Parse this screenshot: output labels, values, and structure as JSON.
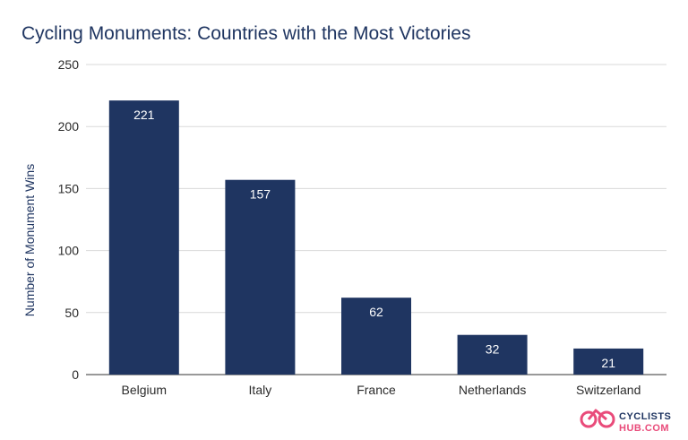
{
  "chart_data": {
    "type": "bar",
    "title": "Cycling Monuments: Countries with the Most Victories",
    "xlabel": "",
    "ylabel": "Number of Monument Wins",
    "categories": [
      "Belgium",
      "Italy",
      "France",
      "Netherlands",
      "Switzerland"
    ],
    "values": [
      221,
      157,
      62,
      32,
      21
    ],
    "ylim": [
      0,
      250
    ],
    "yticks": [
      0,
      50,
      100,
      150,
      200,
      250
    ],
    "grid": true,
    "legend": "none",
    "bar_color": "#1f3561"
  },
  "branding": {
    "logo_line1": "CYCLISTS",
    "logo_line2": "HUB.COM",
    "logo_icon": "bicycle-icon",
    "primary_color": "#1f3561",
    "accent_color": "#e94b7a"
  }
}
